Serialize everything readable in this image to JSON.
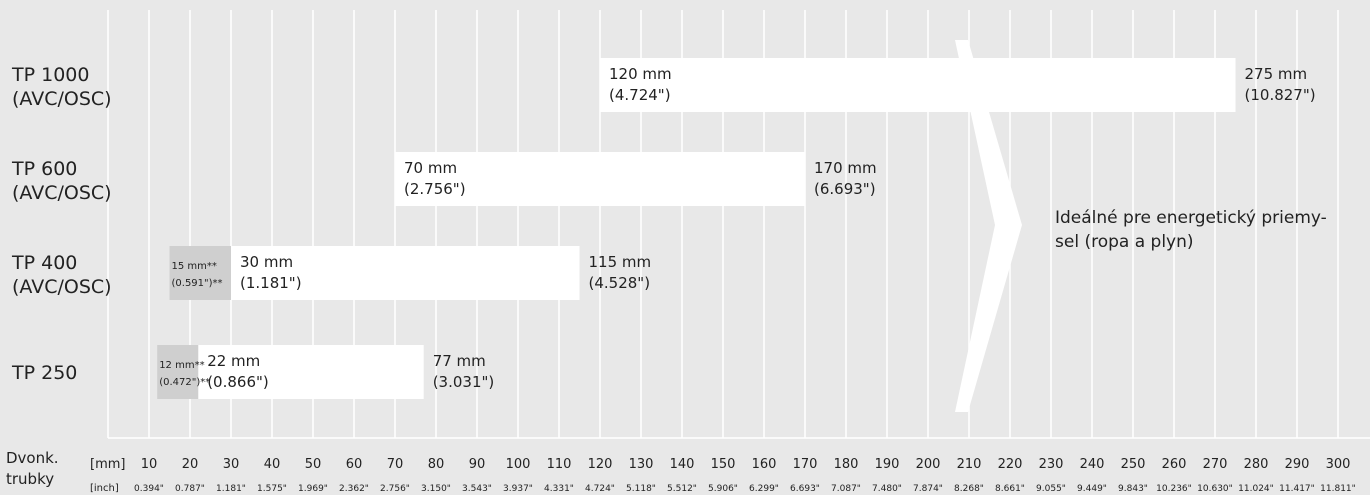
{
  "chart_data": {
    "type": "bar",
    "orientation": "horizontal-range",
    "categories": [
      {
        "line1": "TP 1000",
        "line2": "(AVC/OSC)"
      },
      {
        "line1": "TP 600",
        "line2": "(AVC/OSC)"
      },
      {
        "line1": "TP 400",
        "line2": "(AVC/OSC)"
      },
      {
        "line1": "TP 250",
        "line2": ""
      }
    ],
    "ranges": [
      {
        "min": 120,
        "max": 275,
        "min_mm": "120 mm",
        "min_in": "(4.724\")",
        "max_mm": "275 mm",
        "max_in": "(10.827\")",
        "ext_min": null,
        "ext_mm": "",
        "ext_in": ""
      },
      {
        "min": 70,
        "max": 170,
        "min_mm": "70 mm",
        "min_in": "(2.756\")",
        "max_mm": "170 mm",
        "max_in": "(6.693\")",
        "ext_min": null,
        "ext_mm": "",
        "ext_in": ""
      },
      {
        "min": 30,
        "max": 115,
        "min_mm": "30 mm",
        "min_in": "(1.181\")",
        "max_mm": "115 mm",
        "max_in": "(4.528\")",
        "ext_min": 15,
        "ext_mm": "15 mm**",
        "ext_in": "(0.591\")**"
      },
      {
        "min": 22,
        "max": 77,
        "min_mm": "22 mm",
        "min_in": "(0.866\")",
        "max_mm": "77 mm",
        "max_in": "(3.031\")",
        "ext_min": 12,
        "ext_mm": "12 mm**",
        "ext_in": "(0.472\")**"
      }
    ],
    "xlim": [
      0,
      300
    ],
    "mm_ticks": [
      10,
      20,
      30,
      40,
      50,
      60,
      70,
      80,
      90,
      100,
      110,
      120,
      130,
      140,
      150,
      160,
      170,
      180,
      190,
      200,
      210,
      220,
      230,
      240,
      250,
      260,
      270,
      280,
      290,
      300
    ],
    "inch_ticks": [
      "0.394\"",
      "0.787\"",
      "1.181\"",
      "1.575\"",
      "1.969\"",
      "2.362\"",
      "2.756\"",
      "3.150\"",
      "3.543\"",
      "3.937\"",
      "4.331\"",
      "4.724\"",
      "5.118\"",
      "5.512\"",
      "5.906\"",
      "6.299\"",
      "6.693\"",
      "7.087\"",
      "7.480\"",
      "7.874\"",
      "8.268\"",
      "8.661\"",
      "9.055\"",
      "9.449\"",
      "9.843\"",
      "10.236\"",
      "10.630\"",
      "11.024\"",
      "11.417\"",
      "11.811\""
    ],
    "axis_title": {
      "line1": "Dvonk.",
      "line2": "trubky"
    },
    "unit_mm": "[mm]",
    "unit_inch": "[inch]",
    "annotation": {
      "line1": "Ideálné pre energetický priemy-",
      "line2": "sel (ropa a plyn)"
    },
    "grid": true
  },
  "colors": {
    "background": "#e8e8e8",
    "bar": "#ffffff",
    "extension": "#cfcfcf",
    "grid": "#ffffff",
    "text": "#222222"
  }
}
